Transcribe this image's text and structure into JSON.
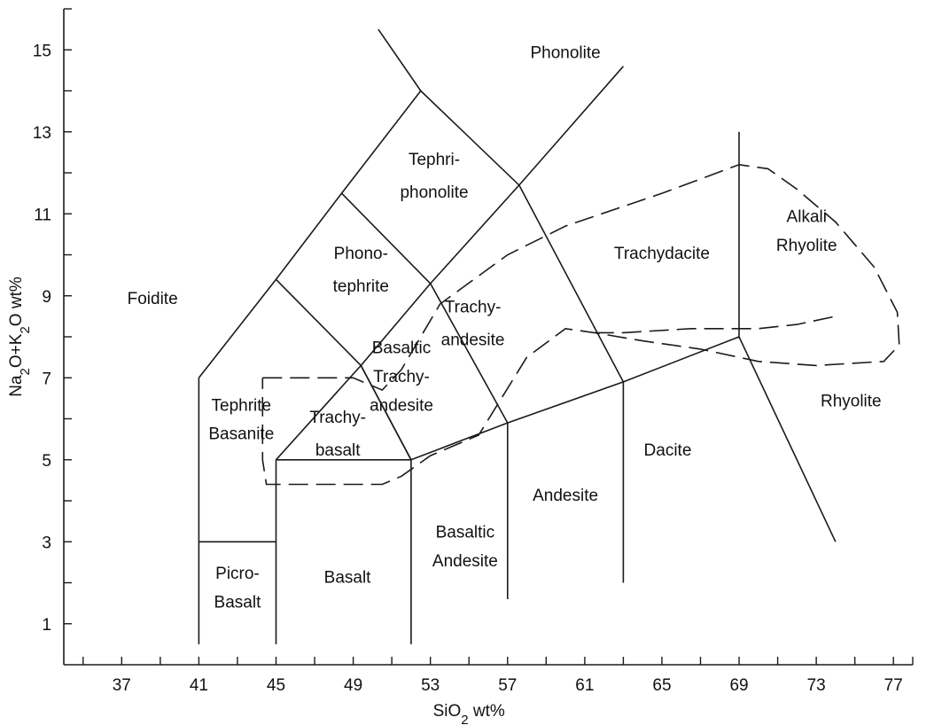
{
  "chart_data": {
    "type": "diagram",
    "xlabel": "SiO2 wt%",
    "ylabel": "Na2O+K2O wt%",
    "xlim": [
      34,
      78
    ],
    "ylim": [
      0,
      16
    ],
    "xticks": [
      37,
      41,
      45,
      49,
      53,
      57,
      61,
      65,
      69,
      73,
      77
    ],
    "yticks": [
      1,
      3,
      5,
      7,
      9,
      11,
      13,
      15
    ],
    "boundaries": [
      {
        "name": "picrobasalt-basalt-lower",
        "points": [
          [
            41,
            0.5
          ],
          [
            41,
            7
          ]
        ]
      },
      {
        "name": "foidite-tephrite-edge",
        "points": [
          [
            41,
            7
          ],
          [
            45,
            9.4
          ],
          [
            48.4,
            11.5
          ],
          [
            52.5,
            14
          ],
          [
            57.6,
            11.7
          ],
          [
            63,
            14.6
          ]
        ]
      },
      {
        "name": "phonolite-upper",
        "points": [
          [
            50.3,
            15.5
          ],
          [
            52.5,
            14
          ]
        ]
      },
      {
        "name": "tephrite-phonotephrite",
        "points": [
          [
            45,
            9.4
          ],
          [
            49.4,
            7.3
          ],
          [
            53,
            9.3
          ],
          [
            57.6,
            11.7
          ]
        ]
      },
      {
        "name": "phonotephrite-tephriphonolite",
        "points": [
          [
            48.4,
            11.5
          ],
          [
            53,
            9.3
          ]
        ]
      },
      {
        "name": "basaltic-trachyandesite-boundary",
        "points": [
          [
            49.4,
            7.3
          ],
          [
            52,
            5
          ],
          [
            57,
            5.9
          ],
          [
            63,
            6.9
          ],
          [
            69,
            8
          ],
          [
            74,
            3
          ]
        ]
      },
      {
        "name": "trachybasalt-left",
        "points": [
          [
            45,
            5
          ],
          [
            49.4,
            7.3
          ]
        ]
      },
      {
        "name": "trachyandesite-divider",
        "points": [
          [
            53,
            9.3
          ],
          [
            57,
            5.9
          ]
        ]
      },
      {
        "name": "trachydacite-divider",
        "points": [
          [
            57.6,
            11.7
          ],
          [
            63,
            6.9
          ]
        ]
      },
      {
        "name": "rhyolite-divider",
        "points": [
          [
            69,
            8
          ],
          [
            69,
            13
          ]
        ]
      },
      {
        "name": "basanite-floor",
        "points": [
          [
            41,
            3
          ],
          [
            45,
            3
          ]
        ]
      },
      {
        "name": "basalt-top",
        "points": [
          [
            45,
            5
          ],
          [
            52,
            5
          ]
        ]
      },
      {
        "name": "basalt-left",
        "points": [
          [
            45,
            0.5
          ],
          [
            45,
            5
          ]
        ]
      },
      {
        "name": "basaltic-andesite-left",
        "points": [
          [
            52,
            0.5
          ],
          [
            52,
            5
          ]
        ]
      },
      {
        "name": "andesite-left",
        "points": [
          [
            57,
            1.6
          ],
          [
            57,
            5.9
          ]
        ]
      },
      {
        "name": "dacite-left",
        "points": [
          [
            63,
            2
          ],
          [
            63,
            6.9
          ]
        ]
      },
      {
        "name": "trachybasalt-right",
        "points": [
          [
            49.4,
            7.3
          ],
          [
            52,
            5
          ]
        ]
      }
    ],
    "dashed_field": [
      [
        44.3,
        7
      ],
      [
        49,
        7
      ],
      [
        50.5,
        6.7
      ],
      [
        51.5,
        7.2
      ],
      [
        53.5,
        8.8
      ],
      [
        57,
        10
      ],
      [
        60,
        10.7
      ],
      [
        65,
        11.5
      ],
      [
        69,
        12.2
      ],
      [
        70.5,
        12.1
      ],
      [
        72,
        11.6
      ],
      [
        74,
        10.8
      ],
      [
        76,
        9.7
      ],
      [
        77.2,
        8.6
      ],
      [
        77.3,
        7.8
      ],
      [
        76.5,
        7.4
      ],
      [
        73,
        7.3
      ],
      [
        70,
        7.4
      ],
      [
        67,
        7.7
      ],
      [
        64,
        7.9
      ],
      [
        61.5,
        8.1
      ],
      [
        60,
        8.2
      ],
      [
        58,
        7.5
      ],
      [
        55.5,
        5.6
      ],
      [
        53,
        5.1
      ],
      [
        51.5,
        4.6
      ],
      [
        50.5,
        4.4
      ],
      [
        48,
        4.4
      ],
      [
        45.5,
        4.4
      ],
      [
        44.5,
        4.4
      ],
      [
        44.3,
        5
      ],
      [
        44.3,
        6.5
      ],
      [
        44.3,
        7
      ]
    ],
    "dashed_tail": [
      [
        61.5,
        8.1
      ],
      [
        63,
        8.1
      ],
      [
        66.5,
        8.2
      ],
      [
        70,
        8.2
      ],
      [
        72,
        8.3
      ],
      [
        74,
        8.5
      ]
    ],
    "labels": [
      {
        "text": "Phonolite",
        "x": 60,
        "y": 14.8
      },
      {
        "text": "Tephri-",
        "x": 53.2,
        "y": 12.2
      },
      {
        "text": "phonolite",
        "x": 53.2,
        "y": 11.4
      },
      {
        "text": "Phono-",
        "x": 49.4,
        "y": 9.9
      },
      {
        "text": "tephrite",
        "x": 49.4,
        "y": 9.1
      },
      {
        "text": "Foidite",
        "x": 38.6,
        "y": 8.8
      },
      {
        "text": "Trachy-",
        "x": 55.2,
        "y": 8.6
      },
      {
        "text": "andesite",
        "x": 55.2,
        "y": 7.8
      },
      {
        "text": "Basaltic",
        "x": 51.5,
        "y": 7.6
      },
      {
        "text": "Trachy-",
        "x": 51.5,
        "y": 6.9
      },
      {
        "text": "andesite",
        "x": 51.5,
        "y": 6.2
      },
      {
        "text": "Tephrite",
        "x": 43.2,
        "y": 6.2
      },
      {
        "text": "Basanite",
        "x": 43.2,
        "y": 5.5
      },
      {
        "text": "Trachy-",
        "x": 48.2,
        "y": 5.9
      },
      {
        "text": "basalt",
        "x": 48.2,
        "y": 5.1
      },
      {
        "text": "Trachydacite",
        "x": 65,
        "y": 9.9
      },
      {
        "text": "Alkali",
        "x": 72.5,
        "y": 10.8
      },
      {
        "text": "Rhyolite",
        "x": 72.5,
        "y": 10.1
      },
      {
        "text": "Rhyolite",
        "x": 74.8,
        "y": 6.3
      },
      {
        "text": "Dacite",
        "x": 65.3,
        "y": 5.1
      },
      {
        "text": "Andesite",
        "x": 60,
        "y": 4
      },
      {
        "text": "Basaltic",
        "x": 54.8,
        "y": 3.1
      },
      {
        "text": "Andesite",
        "x": 54.8,
        "y": 2.4
      },
      {
        "text": "Picro-",
        "x": 43,
        "y": 2.1
      },
      {
        "text": "Basalt",
        "x": 43,
        "y": 1.4
      },
      {
        "text": "Basalt",
        "x": 48.7,
        "y": 2
      }
    ]
  }
}
